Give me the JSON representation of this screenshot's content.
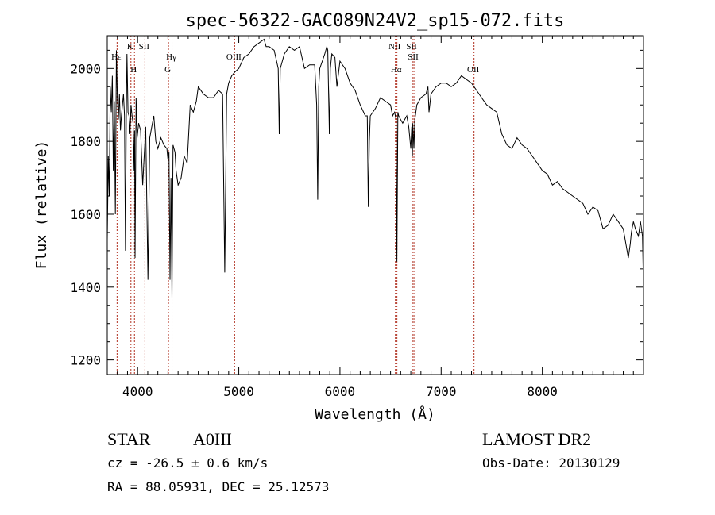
{
  "chart_data": {
    "type": "line",
    "title": "spec-56322-GAC089N24V2_sp15-072.fits",
    "xlabel": "Wavelength (Å)",
    "ylabel": "Flux (relative)",
    "xlim": [
      3700,
      9000
    ],
    "ylim": [
      1160,
      2090
    ],
    "xticks": [
      4000,
      5000,
      6000,
      7000,
      8000
    ],
    "yticks": [
      1200,
      1400,
      1600,
      1800,
      2000
    ],
    "grid": false,
    "series": [
      {
        "x": [
          3700,
          3710,
          3720,
          3730,
          3740,
          3750,
          3760,
          3770,
          3780,
          3790,
          3800,
          3810,
          3820,
          3830,
          3840,
          3850,
          3860,
          3870,
          3880,
          3888,
          3895,
          3905,
          3915,
          3925,
          3935,
          3945,
          3955,
          3965,
          3970,
          3975,
          3985,
          3995,
          4010,
          4030,
          4050,
          4080,
          4102,
          4120,
          4140,
          4160,
          4180,
          4200,
          4230,
          4260,
          4290,
          4300,
          4310,
          4320,
          4330,
          4340,
          4350,
          4370,
          4380,
          4400,
          4430,
          4460,
          4490,
          4520,
          4550,
          4580,
          4600,
          4650,
          4700,
          4750,
          4800,
          4840,
          4861,
          4880,
          4900,
          4930,
          4960,
          5000,
          5050,
          5100,
          5150,
          5200,
          5250,
          5270,
          5300,
          5350,
          5390,
          5400,
          5410,
          5450,
          5500,
          5550,
          5600,
          5650,
          5700,
          5750,
          5770,
          5780,
          5790,
          5800,
          5850,
          5870,
          5880,
          5895,
          5905,
          5920,
          5950,
          5970,
          6000,
          6050,
          6100,
          6150,
          6200,
          6250,
          6270,
          6280,
          6290,
          6300,
          6350,
          6400,
          6450,
          6500,
          6520,
          6540,
          6555,
          6563,
          6572,
          6580,
          6600,
          6620,
          6640,
          6660,
          6680,
          6700,
          6710,
          6716,
          6720,
          6731,
          6740,
          6760,
          6800,
          6850,
          6870,
          6880,
          6900,
          6950,
          7000,
          7050,
          7100,
          7150,
          7200,
          7250,
          7300,
          7350,
          7400,
          7450,
          7500,
          7550,
          7600,
          7650,
          7700,
          7750,
          7800,
          7850,
          7900,
          7950,
          8000,
          8050,
          8100,
          8150,
          8200,
          8250,
          8300,
          8350,
          8400,
          8450,
          8500,
          8550,
          8600,
          8650,
          8700,
          8750,
          8800,
          8850,
          8870,
          8880,
          8900,
          8920,
          8950,
          8970,
          8990,
          9000
        ],
        "y": [
          1530,
          1760,
          1650,
          1950,
          1880,
          1980,
          1720,
          1910,
          1600,
          2050,
          1920,
          1860,
          1930,
          1830,
          1870,
          1900,
          1930,
          1870,
          1500,
          1860,
          2040,
          1880,
          1870,
          1820,
          1900,
          1870,
          1850,
          1720,
          1830,
          1480,
          1920,
          1810,
          1850,
          1830,
          1680,
          1840,
          1420,
          1810,
          1840,
          1870,
          1800,
          1780,
          1810,
          1790,
          1780,
          1750,
          1770,
          1420,
          1700,
          1370,
          1790,
          1770,
          1720,
          1680,
          1700,
          1760,
          1740,
          1900,
          1880,
          1910,
          1950,
          1930,
          1920,
          1920,
          1940,
          1930,
          1440,
          1930,
          1960,
          1980,
          1990,
          2000,
          2030,
          2040,
          2060,
          2070,
          2080,
          2060,
          2060,
          2050,
          2000,
          1820,
          2000,
          2040,
          2060,
          2050,
          2060,
          2000,
          2010,
          2010,
          1900,
          1640,
          1950,
          2000,
          2040,
          2060,
          2050,
          1820,
          2000,
          2040,
          2030,
          1950,
          2020,
          2000,
          1960,
          1940,
          1900,
          1870,
          1870,
          1620,
          1800,
          1870,
          1890,
          1920,
          1910,
          1900,
          1870,
          1880,
          1860,
          1470,
          1880,
          1870,
          1860,
          1850,
          1860,
          1870,
          1840,
          1780,
          1840,
          1760,
          1850,
          1780,
          1860,
          1900,
          1920,
          1930,
          1950,
          1880,
          1930,
          1950,
          1960,
          1960,
          1950,
          1960,
          1980,
          1970,
          1960,
          1940,
          1920,
          1900,
          1890,
          1880,
          1820,
          1790,
          1780,
          1810,
          1790,
          1780,
          1760,
          1740,
          1720,
          1710,
          1680,
          1690,
          1670,
          1660,
          1650,
          1640,
          1630,
          1600,
          1620,
          1610,
          1560,
          1570,
          1600,
          1580,
          1560,
          1480,
          1520,
          1550,
          1580,
          1560,
          1540,
          1580,
          1540,
          1400
        ]
      }
    ],
    "lines": [
      {
        "label": "Hε",
        "x": 3797
      },
      {
        "label": "K",
        "x": 3934
      },
      {
        "label": "H",
        "x": 3969
      },
      {
        "label": "SII",
        "x": 4072
      },
      {
        "label": "G",
        "x": 4305
      },
      {
        "label": "Hγ",
        "x": 4340
      },
      {
        "label": "OIII",
        "x": 4959
      },
      {
        "label": "NII",
        "x": 6548
      },
      {
        "label": "Hα",
        "x": 6563
      },
      {
        "label": "SII",
        "x": 6716
      },
      {
        "label": "SII",
        "x": 6731
      },
      {
        "label": "OII",
        "x": 7325
      }
    ]
  },
  "info": {
    "class": "STAR",
    "subclass": "A0III",
    "survey": "LAMOST DR2",
    "redshift": "cz = -26.5 ± 0.6 km/s",
    "obs_date": "Obs-Date: 20130129",
    "coords": "RA =  88.05931, DEC =  25.12573"
  }
}
